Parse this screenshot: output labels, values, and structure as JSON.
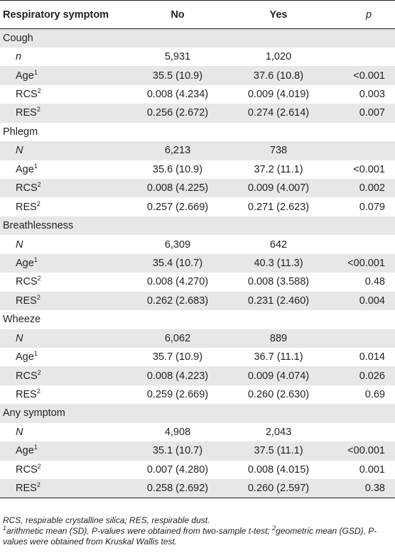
{
  "header": {
    "label": "Respiratory symptom",
    "no": "No",
    "yes": "Yes",
    "p": "p"
  },
  "rows": [
    {
      "type": "group",
      "label": "Cough"
    },
    {
      "type": "n",
      "label": "n",
      "no": "5,931",
      "yes": "1,020",
      "p": ""
    },
    {
      "type": "sub",
      "label": "Age",
      "sup": "1",
      "no": "35.5 (10.9)",
      "yes": "37.6 (10.8)",
      "p": "<0.001"
    },
    {
      "type": "sub",
      "label": "RCS",
      "sup": "2",
      "no": "0.008 (4.234)",
      "yes": "0.009 (4.019)",
      "p": "0.003"
    },
    {
      "type": "sub",
      "label": "RES",
      "sup": "2",
      "no": "0.256 (2.672)",
      "yes": "0.274 (2.614)",
      "p": "0.007"
    },
    {
      "type": "group",
      "label": "Phlegm"
    },
    {
      "type": "n",
      "label": "N",
      "no": "6,213",
      "yes": "738",
      "p": ""
    },
    {
      "type": "sub",
      "label": "Age",
      "sup": "1",
      "no": "35.6 (10.9)",
      "yes": "37.2 (11.1)",
      "p": "<0.001"
    },
    {
      "type": "sub",
      "label": "RCS",
      "sup": "2",
      "no": "0.008 (4.225)",
      "yes": "0.009 (4.007)",
      "p": "0.002"
    },
    {
      "type": "sub",
      "label": "RES",
      "sup": "2",
      "no": "0.257 (2.669)",
      "yes": "0.271 (2.623)",
      "p": "0.079"
    },
    {
      "type": "group",
      "label": "Breathlessness"
    },
    {
      "type": "n",
      "label": "N",
      "no": "6,309",
      "yes": "642",
      "p": ""
    },
    {
      "type": "sub",
      "label": "Age",
      "sup": "1",
      "no": "35.4 (10.7)",
      "yes": "40.3 (11.3)",
      "p": "<00.001"
    },
    {
      "type": "sub",
      "label": "RCS",
      "sup": "2",
      "no": "0.008 (4.270)",
      "yes": "0.008 (3.588)",
      "p": "0.48"
    },
    {
      "type": "sub",
      "label": "RES",
      "sup": "2",
      "no": "0.262 (2.683)",
      "yes": "0.231 (2.460)",
      "p": "0.004"
    },
    {
      "type": "group",
      "label": "Wheeze"
    },
    {
      "type": "n",
      "label": "N",
      "no": "6,062",
      "yes": "889",
      "p": ""
    },
    {
      "type": "sub",
      "label": "Age",
      "sup": "1",
      "no": "35.7 (10.9)",
      "yes": "36.7 (11.1)",
      "p": "0.014"
    },
    {
      "type": "sub",
      "label": "RCS",
      "sup": "2",
      "no": "0.008 (4.223)",
      "yes": "0.009 (4.074)",
      "p": "0.026"
    },
    {
      "type": "sub",
      "label": "RES",
      "sup": "2",
      "no": "0.259 (2.669)",
      "yes": "0.260 (2.630)",
      "p": "0.69"
    },
    {
      "type": "group",
      "label": "Any symptom"
    },
    {
      "type": "n",
      "label": "N",
      "no": "4,908",
      "yes": "2,043",
      "p": ""
    },
    {
      "type": "sub",
      "label": "Age",
      "sup": "1",
      "no": "35.1 (10.7)",
      "yes": "37.5 (11.1)",
      "p": "<00.001"
    },
    {
      "type": "sub",
      "label": "RCS",
      "sup": "2",
      "no": "0.007 (4.280)",
      "yes": "0.008 (4.015)",
      "p": "0.001"
    },
    {
      "type": "sub",
      "label": "RES",
      "sup": "2",
      "no": "0.258 (2.692)",
      "yes": "0.260 (2.597)",
      "p": "0.38"
    }
  ],
  "notes": {
    "abbrev": "RCS, respirable crystalline silica; RES, respirable dust.",
    "fn1_mark": "1",
    "fn1_text": "arithmetic mean (SD), P-values were obtained from two-sample t-test; ",
    "fn2_mark": "2",
    "fn2_text": "geometric mean (GSD), P-values were obtained from Kruskal Wallis test."
  }
}
